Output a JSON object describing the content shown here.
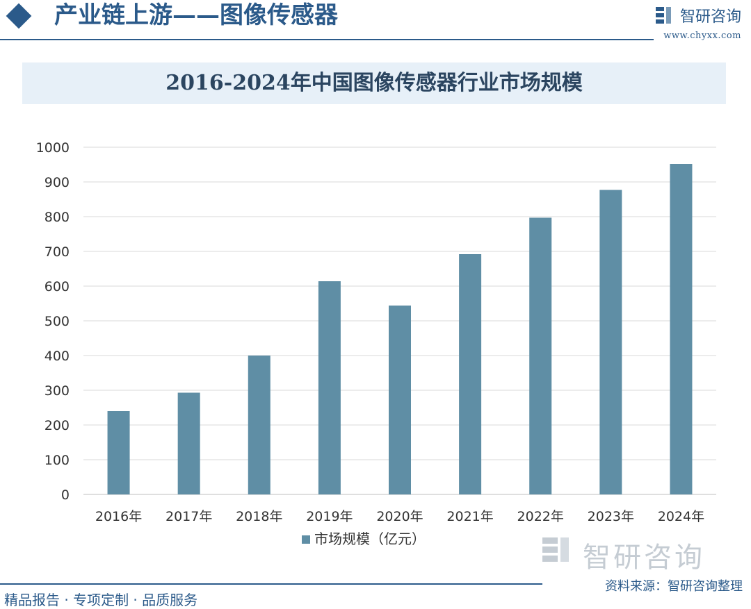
{
  "header": {
    "title": "产业链上游——图像传感器",
    "brand_name": "智研咨询",
    "brand_url": "www.chyxx.com"
  },
  "watermark": {
    "name": "智研咨询"
  },
  "footer": {
    "left_text": "精品报告 · 专项定制 · 品质服务",
    "source": "资料来源：智研咨询整理"
  },
  "colors": {
    "brand": "#2b5a8a",
    "bar": "#5f8ea5",
    "banner": "#e7f0f8"
  },
  "chart_data": {
    "type": "bar",
    "title": "2016-2024年中国图像传感器行业市场规模",
    "categories": [
      "2016年",
      "2017年",
      "2018年",
      "2019年",
      "2020年",
      "2021年",
      "2022年",
      "2023年",
      "2024年"
    ],
    "series": [
      {
        "name": "市场规模（亿元）",
        "values": [
          240,
          293,
          400,
          614,
          544,
          692,
          797,
          877,
          952
        ]
      }
    ],
    "ylim": [
      0,
      1000
    ],
    "yticks": [
      0,
      100,
      200,
      300,
      400,
      500,
      600,
      700,
      800,
      900,
      1000
    ],
    "grid": true,
    "legend_position": "bottom"
  }
}
